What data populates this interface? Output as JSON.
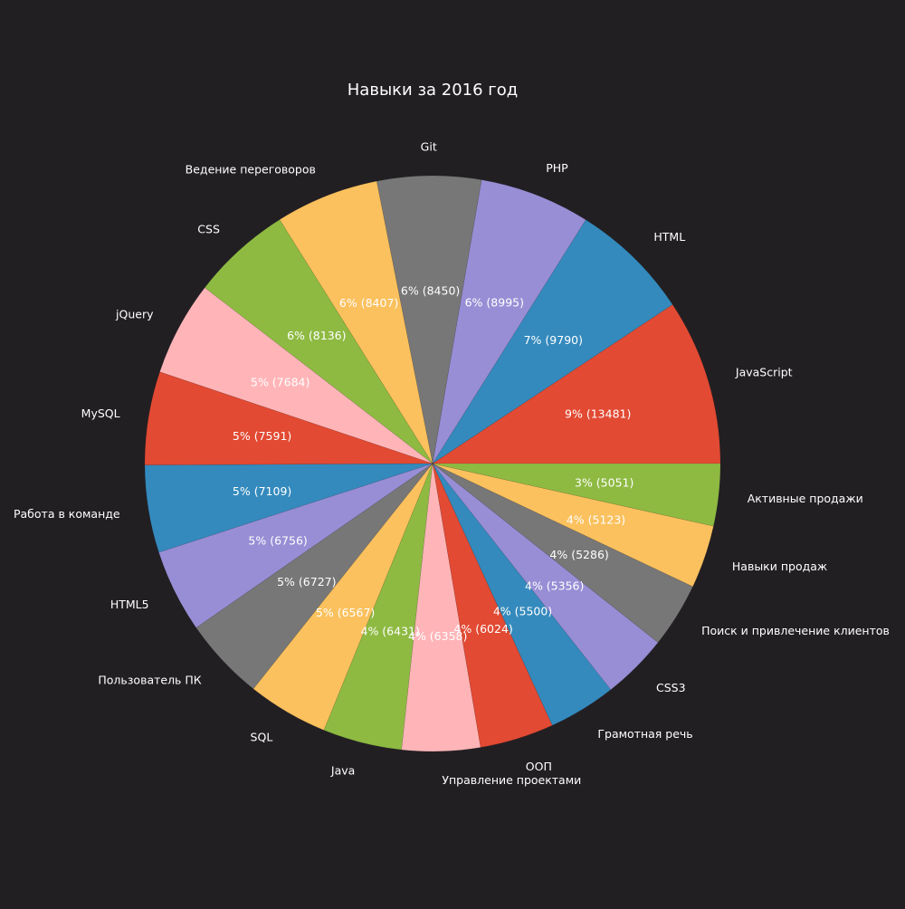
{
  "chart_data": {
    "type": "pie",
    "title": "Навыки за 2016 год",
    "start_angle_deg": 0,
    "direction": "counterclockwise",
    "slices": [
      {
        "label": "JavaScript",
        "value": 13481,
        "pct_label": "9%  (13481)",
        "color": "#e24a33"
      },
      {
        "label": "HTML",
        "value": 9790,
        "pct_label": "7%  (9790)",
        "color": "#348abd"
      },
      {
        "label": "PHP",
        "value": 8995,
        "pct_label": "6%  (8995)",
        "color": "#988ed5"
      },
      {
        "label": "Git",
        "value": 8450,
        "pct_label": "6%  (8450)",
        "color": "#777777"
      },
      {
        "label": "Ведение переговоров",
        "value": 8407,
        "pct_label": "6%  (8407)",
        "color": "#fbc15e"
      },
      {
        "label": "CSS",
        "value": 8136,
        "pct_label": "6%  (8136)",
        "color": "#8eba42"
      },
      {
        "label": "jQuery",
        "value": 7684,
        "pct_label": "5%  (7684)",
        "color": "#ffb5b8"
      },
      {
        "label": "MySQL",
        "value": 7591,
        "pct_label": "5%  (7591)",
        "color": "#e24a33"
      },
      {
        "label": "Работа в команде",
        "value": 7109,
        "pct_label": "5%  (7109)",
        "color": "#348abd"
      },
      {
        "label": "HTML5",
        "value": 6756,
        "pct_label": "5%  (6756)",
        "color": "#988ed5"
      },
      {
        "label": "Пользователь ПК",
        "value": 6727,
        "pct_label": "5%  (6727)",
        "color": "#777777"
      },
      {
        "label": "SQL",
        "value": 6567,
        "pct_label": "5%  (6567)",
        "color": "#fbc15e"
      },
      {
        "label": "Java",
        "value": 6431,
        "pct_label": "4%  (6431)",
        "color": "#8eba42"
      },
      {
        "label": "Управление проектами",
        "value": 6358,
        "pct_label": "4%  (6358)",
        "color": "#ffb5b8"
      },
      {
        "label": "ООП",
        "value": 6024,
        "pct_label": "4%  (6024)",
        "color": "#e24a33"
      },
      {
        "label": "Грамотная речь",
        "value": 5500,
        "pct_label": "4%  (5500)",
        "color": "#348abd"
      },
      {
        "label": "CSS3",
        "value": 5356,
        "pct_label": "4%  (5356)",
        "color": "#988ed5"
      },
      {
        "label": "Поиск и привлечение клиентов",
        "value": 5286,
        "pct_label": "4%  (5286)",
        "color": "#777777"
      },
      {
        "label": "Навыки продаж",
        "value": 5123,
        "pct_label": "4%  (5123)",
        "color": "#fbc15e"
      },
      {
        "label": "Активные продажи",
        "value": 5051,
        "pct_label": "3%  (5051)",
        "color": "#8eba42"
      }
    ],
    "background_color": "#221f23",
    "text_color": "#ffffff"
  }
}
